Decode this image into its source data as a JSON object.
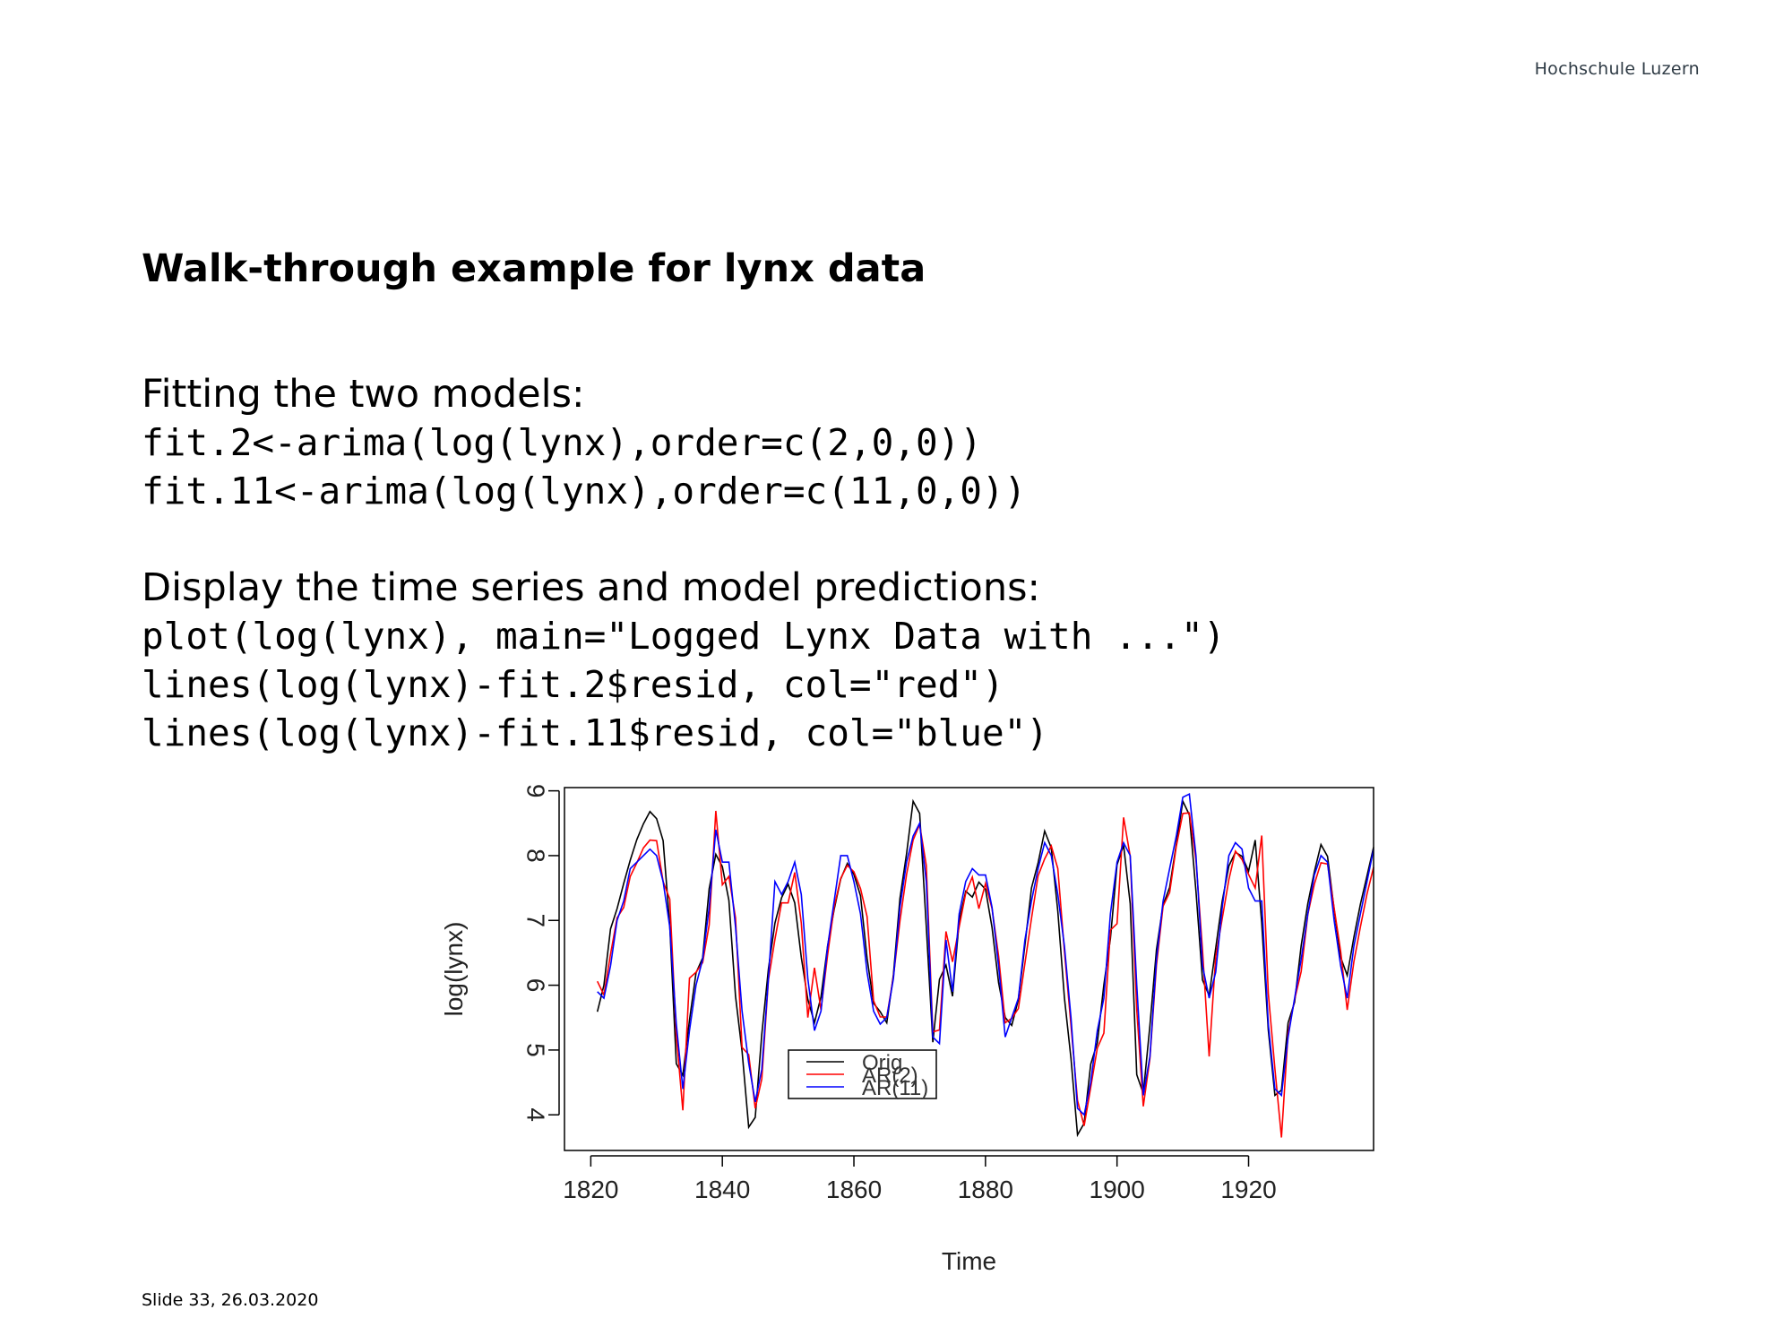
{
  "header": {
    "logo_text": "Hochschule Luzern"
  },
  "slide": {
    "title": "Walk-through example for lynx data",
    "section1_heading": "Fitting the two models:",
    "code1": [
      "fit.2<-arima(log(lynx),order=c(2,0,0))",
      "fit.11<-arima(log(lynx),order=c(11,0,0))"
    ],
    "section2_heading": "Display the time series and model predictions:",
    "code2": [
      "plot(log(lynx), main=\"Logged Lynx Data with ...\")",
      "lines(log(lynx)-fit.2$resid, col=\"red\")",
      "lines(log(lynx)-fit.11$resid, col=\"blue\")"
    ]
  },
  "footer": {
    "text": "Slide  33, 26.03.2020"
  },
  "chart_data": {
    "type": "line",
    "xlabel": "Time",
    "ylabel": "log(lynx)",
    "xlim": [
      1816,
      1939
    ],
    "ylim": [
      3.45,
      9.05
    ],
    "x_ticks": [
      1820,
      1840,
      1860,
      1880,
      1900,
      1920
    ],
    "y_ticks": [
      4,
      5,
      6,
      7,
      8,
      9
    ],
    "legend_position": "bottom-center",
    "series": [
      {
        "name": "Orig",
        "color": "#000000",
        "x_start": 1821,
        "values": [
          5.59,
          6.0,
          6.87,
          7.18,
          7.57,
          7.93,
          8.25,
          8.49,
          8.68,
          8.57,
          8.23,
          6.92,
          4.79,
          4.61,
          5.46,
          6.19,
          6.42,
          7.49,
          8.02,
          7.83,
          7.31,
          5.83,
          4.98,
          3.81,
          3.96,
          5.24,
          6.25,
          6.96,
          7.35,
          7.56,
          7.27,
          6.43,
          5.78,
          5.42,
          5.82,
          6.61,
          7.17,
          7.64,
          7.88,
          7.71,
          7.38,
          6.42,
          5.72,
          5.59,
          5.42,
          6.16,
          7.34,
          8.03,
          8.84,
          8.65,
          6.91,
          5.12,
          6.09,
          6.31,
          5.83,
          6.99,
          7.45,
          7.36,
          7.59,
          7.48,
          6.89,
          6.04,
          5.5,
          5.38,
          5.78,
          6.62,
          7.5,
          7.89,
          8.38,
          8.12,
          7.14,
          5.8,
          4.87,
          3.69,
          3.87,
          4.78,
          5.11,
          6.01,
          6.72,
          7.86,
          8.16,
          7.26,
          4.62,
          4.33,
          5.38,
          6.55,
          7.24,
          7.51,
          8.17,
          8.84,
          8.63,
          7.45,
          6.08,
          5.84,
          6.57,
          7.3,
          7.84,
          8.05,
          7.99,
          7.76,
          8.24,
          6.95,
          5.31,
          4.3,
          4.38,
          5.42,
          5.74,
          6.61,
          7.26,
          7.75,
          8.17,
          7.99,
          7.17,
          6.43,
          6.15,
          6.74,
          7.25,
          7.69,
          8.13
        ]
      },
      {
        "name": "AR(2)",
        "color": "#ff0000",
        "x_start": 1821,
        "values": [
          6.06,
          5.85,
          6.48,
          7.04,
          7.2,
          7.68,
          7.89,
          8.12,
          8.24,
          8.23,
          7.6,
          7.33,
          5.23,
          4.07,
          6.11,
          6.2,
          6.35,
          6.93,
          8.69,
          7.55,
          7.68,
          7.04,
          5.04,
          4.93,
          4.1,
          4.55,
          6.08,
          6.71,
          7.27,
          7.27,
          7.74,
          6.96,
          5.5,
          6.27,
          5.62,
          6.47,
          7.21,
          7.65,
          7.85,
          7.75,
          7.49,
          7.06,
          5.76,
          5.51,
          5.51,
          6.13,
          6.99,
          7.71,
          8.24,
          8.48,
          7.85,
          5.28,
          5.31,
          6.83,
          6.36,
          6.9,
          7.42,
          7.67,
          7.18,
          7.57,
          7.18,
          6.45,
          5.42,
          5.49,
          5.64,
          6.34,
          7.03,
          7.69,
          7.95,
          8.15,
          7.8,
          6.52,
          5.38,
          4.22,
          3.83,
          4.42,
          5.03,
          5.26,
          6.85,
          6.95,
          8.59,
          7.99,
          5.62,
          4.13,
          4.87,
          6.31,
          7.22,
          7.43,
          8.14,
          8.65,
          8.66,
          7.93,
          6.54,
          4.9,
          6.44,
          7.03,
          7.63,
          8.07,
          7.94,
          7.71,
          7.5,
          8.31,
          5.88,
          4.71,
          3.65,
          5.26,
          5.78,
          6.21,
          7.09,
          7.56,
          7.89,
          7.87,
          7.19,
          6.52,
          5.62,
          6.36,
          6.9,
          7.41,
          7.82
        ]
      },
      {
        "name": "AR(11)",
        "color": "#0000ff",
        "x_start": 1821,
        "values": [
          5.9,
          5.8,
          6.3,
          7.0,
          7.3,
          7.8,
          7.9,
          8.0,
          8.1,
          8.0,
          7.6,
          6.9,
          5.4,
          4.4,
          5.3,
          6.0,
          6.4,
          7.2,
          8.4,
          7.9,
          7.9,
          6.9,
          5.6,
          4.8,
          4.2,
          4.7,
          6.1,
          7.6,
          7.4,
          7.6,
          7.9,
          7.4,
          6.1,
          5.3,
          5.6,
          6.6,
          7.3,
          8.0,
          8.0,
          7.6,
          7.1,
          6.2,
          5.6,
          5.4,
          5.5,
          6.1,
          7.2,
          7.9,
          8.3,
          8.5,
          7.6,
          5.2,
          5.1,
          6.7,
          5.9,
          7.1,
          7.6,
          7.8,
          7.7,
          7.7,
          7.2,
          6.3,
          5.2,
          5.5,
          5.8,
          6.7,
          7.3,
          7.8,
          8.2,
          8.0,
          7.4,
          6.6,
          5.5,
          4.1,
          4.0,
          4.5,
          5.3,
          5.8,
          7.1,
          7.9,
          8.2,
          8.0,
          6.0,
          4.3,
          4.9,
          6.4,
          7.3,
          7.8,
          8.3,
          8.9,
          8.95,
          8.0,
          6.3,
          5.8,
          6.2,
          7.2,
          8.0,
          8.2,
          8.1,
          7.5,
          7.3,
          7.3,
          5.4,
          4.4,
          4.3,
          5.2,
          5.8,
          6.4,
          7.1,
          7.7,
          8.0,
          7.9,
          7.0,
          6.3,
          5.8,
          6.6,
          7.1,
          7.6,
          8.1
        ]
      }
    ]
  }
}
